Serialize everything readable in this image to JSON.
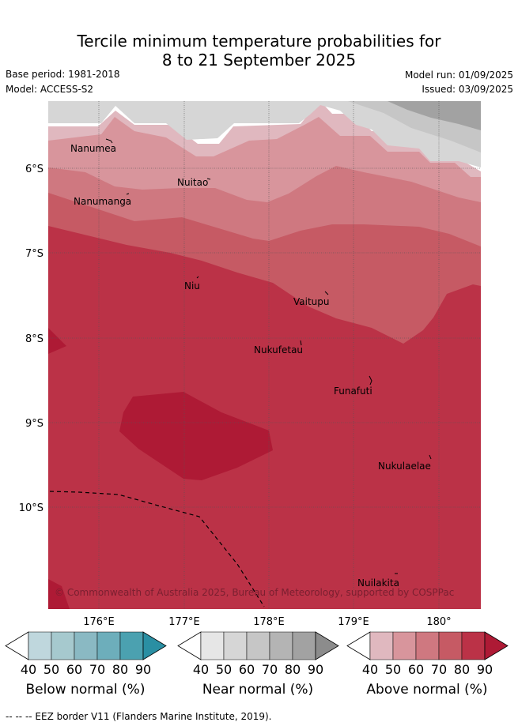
{
  "title_line1": "Tercile minimum temperature probabilities for",
  "title_line2": "8 to 21 September 2025",
  "base_period": "Base period: 1981-2018",
  "model": "Model: ACCESS-S2",
  "model_run": "Model run: 01/09/2025",
  "issued": "Issued: 03/09/2025",
  "lat_labels": [
    "6°S",
    "7°S",
    "8°S",
    "9°S",
    "10°S"
  ],
  "lon_labels": [
    "176°E",
    "177°E",
    "178°E",
    "179°E",
    "180°"
  ],
  "places": [
    {
      "name": "Nanumea"
    },
    {
      "name": "Nuitao"
    },
    {
      "name": "Nanumanga"
    },
    {
      "name": "Niu"
    },
    {
      "name": "Vaitupu"
    },
    {
      "name": "Nukufetau"
    },
    {
      "name": "Funafuti"
    },
    {
      "name": "Nukulaelae"
    },
    {
      "name": "Nuilakita"
    }
  ],
  "copyright": "© Commonwealth of Australia 2025, Bureau of Meteorology, supported by COSPPac",
  "colorbars": [
    {
      "label": "Below normal (%)",
      "ticks": [
        "40",
        "50",
        "60",
        "70",
        "80",
        "90"
      ],
      "colors": [
        "#bfd7dd",
        "#a6c9ce",
        "#8ab9c3",
        "#6daebb",
        "#4ba1b0",
        "#2a8fa3"
      ]
    },
    {
      "label": "Near normal (%)",
      "ticks": [
        "40",
        "50",
        "60",
        "70",
        "80",
        "90"
      ],
      "colors": [
        "#e6e6e6",
        "#d6d6d6",
        "#c6c6c6",
        "#b4b4b4",
        "#a2a2a2",
        "#8c8c8c"
      ]
    },
    {
      "label": "Above normal (%)",
      "ticks": [
        "40",
        "50",
        "60",
        "70",
        "80",
        "90"
      ],
      "colors": [
        "#e0b8bf",
        "#d8959c",
        "#cf7880",
        "#c65a64",
        "#bb3247",
        "#ae1a35"
      ]
    }
  ],
  "footer": "--  --  -- EEZ border V11 (Flanders Marine Institute, 2019)."
}
